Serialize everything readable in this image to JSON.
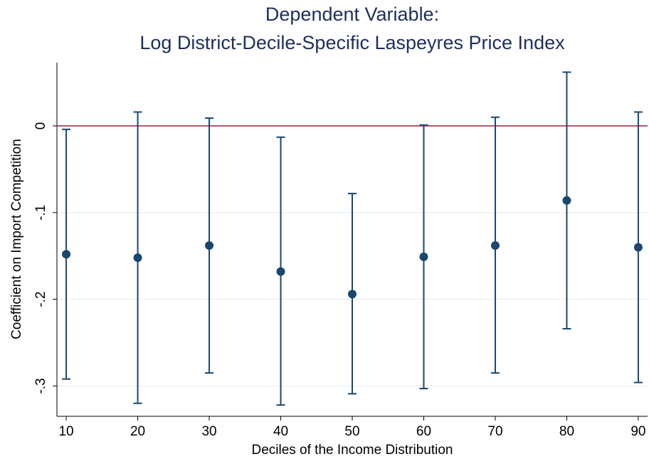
{
  "chart_data": {
    "type": "errorbar",
    "title": [
      "Dependent Variable:",
      "Log District-Decile-Specific Laspeyres Price Index"
    ],
    "x_label": "Deciles of the Income Distribution",
    "y_label": "Coefficient on Import Competition",
    "x": [
      10,
      20,
      30,
      40,
      50,
      60,
      70,
      80,
      90
    ],
    "values": [
      -0.148,
      -0.152,
      -0.138,
      -0.168,
      -0.194,
      -0.151,
      -0.138,
      -0.086,
      -0.14
    ],
    "lower": [
      -0.292,
      -0.32,
      -0.285,
      -0.322,
      -0.309,
      -0.303,
      -0.285,
      -0.234,
      -0.296
    ],
    "upper": [
      -0.004,
      0.016,
      0.009,
      -0.013,
      -0.078,
      0.001,
      0.01,
      0.062,
      0.016
    ],
    "color": "#1a476f",
    "reference_line": {
      "value": 0,
      "color": "#a0203a"
    },
    "xlim": [
      8.7,
      91.3
    ],
    "xticks": [
      10,
      20,
      30,
      40,
      50,
      60,
      70,
      80,
      90
    ],
    "ylim": [
      -0.335,
      0.073
    ],
    "yticks": [
      0,
      {
        "value": -0.1,
        "label": "-.1"
      },
      {
        "value": -0.2,
        "label": "-.2"
      },
      {
        "value": -0.3,
        "label": "-.3"
      }
    ],
    "grid": true
  }
}
